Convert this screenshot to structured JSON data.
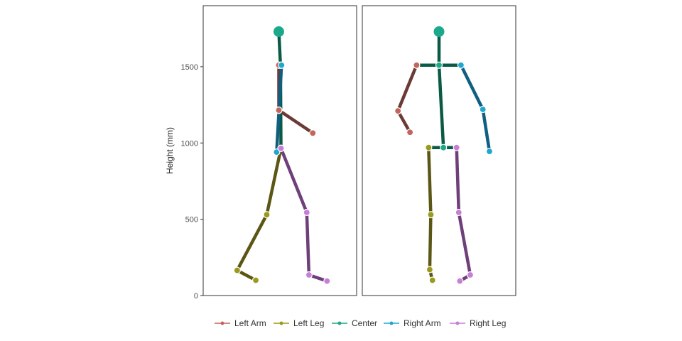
{
  "chart_data": {
    "type": "line",
    "ylabel": "Height (mm)",
    "ylim": [
      0,
      1900
    ],
    "yticks": [
      0,
      500,
      1000,
      1500
    ],
    "grid": false,
    "legend_position": "bottom",
    "series_styles": [
      {
        "name": "Left Arm",
        "color": "#c2655c",
        "line_color": "#6b3a35"
      },
      {
        "name": "Left Leg",
        "color": "#9a9a1e",
        "line_color": "#5b5614"
      },
      {
        "name": "Center",
        "color": "#1aa98a",
        "line_color": "#0b5a45"
      },
      {
        "name": "Right Arm",
        "color": "#1fa8cf",
        "line_color": "#0e5f82"
      },
      {
        "name": "Right Leg",
        "color": "#c77fd6",
        "line_color": "#6f3f7a"
      }
    ],
    "panels": [
      {
        "xlim": [
          -700,
          700
        ],
        "series": [
          {
            "name": "Center",
            "segments": [
              [
                [
                  -10,
                  1730
                ],
                [
                  5,
                  1510
                ]
              ],
              [
                [
                  5,
                  1510
                ],
                [
                  10,
                  965
                ]
              ]
            ],
            "points": [
              [
                -10,
                1730
              ],
              [
                5,
                1510
              ],
              [
                -10,
                1215
              ],
              [
                10,
                965
              ]
            ]
          },
          {
            "name": "Left Arm",
            "segments": [
              [
                [
                  -10,
                  1510
                ],
                [
                  -10,
                  1215
                ],
                [
                  300,
                  1065
                ]
              ]
            ],
            "points": [
              [
                -10,
                1510
              ],
              [
                -10,
                1215
              ],
              [
                300,
                1065
              ]
            ]
          },
          {
            "name": "Right Arm",
            "segments": [
              [
                [
                  15,
                  1510
                ],
                [
                  -30,
                  940
                ]
              ]
            ],
            "points": [
              [
                15,
                1510
              ],
              [
                -30,
                940
              ]
            ]
          },
          {
            "name": "Left Leg",
            "segments": [
              [
                [
                  10,
                  965
                ],
                [
                  -120,
                  530
                ],
                [
                  -390,
                  165
                ],
                [
                  -220,
                  100
                ]
              ]
            ],
            "points": [
              [
                -120,
                530
              ],
              [
                -390,
                165
              ],
              [
                -220,
                100
              ]
            ]
          },
          {
            "name": "Right Leg",
            "segments": [
              [
                [
                  10,
                  965
                ],
                [
                  245,
                  545
                ],
                [
                  265,
                  135
                ],
                [
                  430,
                  95
                ]
              ]
            ],
            "points": [
              [
                10,
                965
              ],
              [
                245,
                545
              ],
              [
                265,
                135
              ],
              [
                430,
                95
              ]
            ]
          }
        ]
      },
      {
        "xlim": [
          -700,
          700
        ],
        "series": [
          {
            "name": "Center",
            "segments": [
              [
                [
                  0,
                  1730
                ],
                [
                  0,
                  1510
                ],
                [
                  40,
                  970
                ]
              ],
              [
                [
                  -205,
                  1510
                ],
                [
                  200,
                  1510
                ]
              ],
              [
                [
                  -95,
                  970
                ],
                [
                  160,
                  970
                ]
              ]
            ],
            "points": [
              [
                0,
                1730
              ],
              [
                0,
                1510
              ],
              [
                40,
                970
              ]
            ]
          },
          {
            "name": "Left Arm",
            "segments": [
              [
                [
                  -205,
                  1510
                ],
                [
                  -375,
                  1210
                ],
                [
                  -265,
                  1070
                ]
              ]
            ],
            "points": [
              [
                -205,
                1510
              ],
              [
                -375,
                1210
              ],
              [
                -265,
                1070
              ]
            ]
          },
          {
            "name": "Right Arm",
            "segments": [
              [
                [
                  200,
                  1510
                ],
                [
                  400,
                  1220
                ],
                [
                  460,
                  945
                ]
              ]
            ],
            "points": [
              [
                200,
                1510
              ],
              [
                400,
                1220
              ],
              [
                460,
                945
              ]
            ]
          },
          {
            "name": "Left Leg",
            "segments": [
              [
                [
                  -95,
                  970
                ],
                [
                  -75,
                  530
                ],
                [
                  -85,
                  170
                ],
                [
                  -60,
                  100
                ]
              ]
            ],
            "points": [
              [
                -95,
                970
              ],
              [
                -75,
                530
              ],
              [
                -85,
                170
              ],
              [
                -60,
                100
              ]
            ]
          },
          {
            "name": "Right Leg",
            "segments": [
              [
                [
                  160,
                  970
                ],
                [
                  180,
                  545
                ],
                [
                  285,
                  135
                ],
                [
                  190,
                  95
                ]
              ]
            ],
            "points": [
              [
                160,
                970
              ],
              [
                180,
                545
              ],
              [
                285,
                135
              ],
              [
                190,
                95
              ]
            ]
          }
        ]
      }
    ]
  }
}
